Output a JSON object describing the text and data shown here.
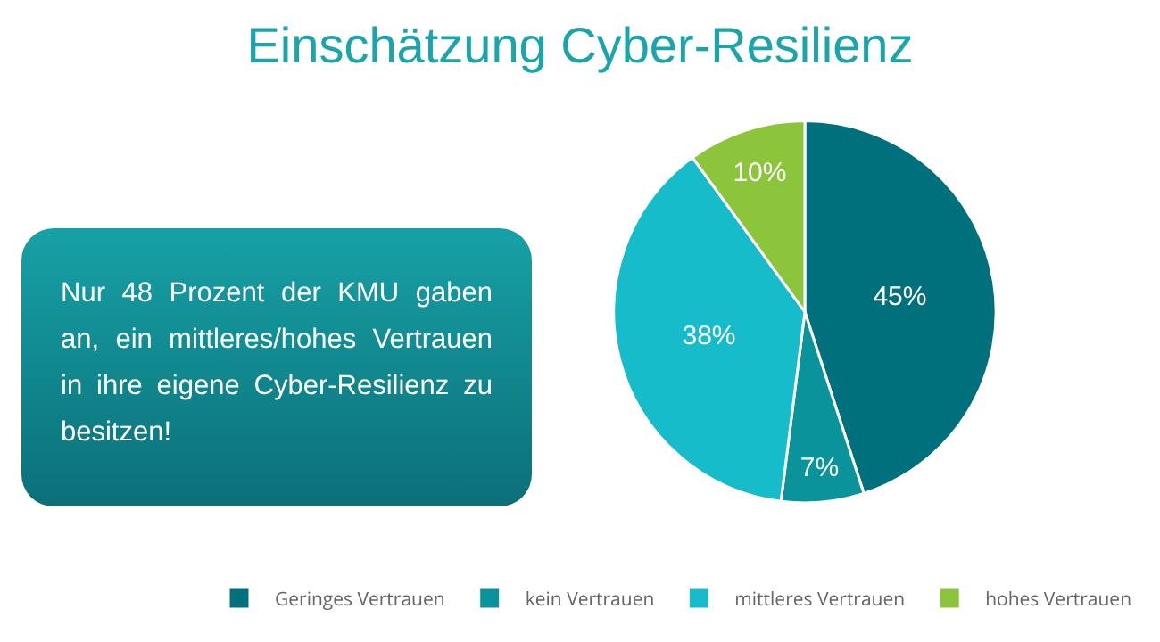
{
  "chart_data": {
    "type": "pie",
    "title": "Einschätzung Cyber-Resilienz",
    "categories": [
      "Geringes Vertrauen",
      "kein Vertrauen",
      "mittleres Vertrauen",
      "hohes Vertrauen"
    ],
    "values": [
      45,
      7,
      38,
      10
    ],
    "value_labels": [
      "45%",
      "7%",
      "38%",
      "10%"
    ],
    "colors": [
      "#00717c",
      "#0b939c",
      "#17bccb",
      "#8cc43c"
    ],
    "legend": "bottom",
    "annotations": [
      "Nur 48 Prozent der KMU gaben an, ein mittleres/hohes Vertrauen in ihre eigene Cyber-Resilienz zu besitzen!"
    ]
  }
}
